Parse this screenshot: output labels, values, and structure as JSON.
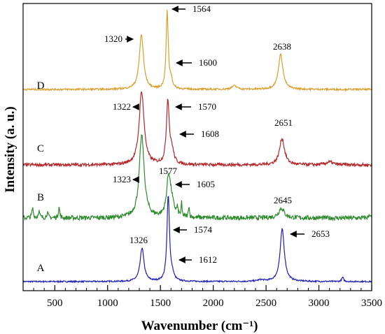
{
  "chart_data": {
    "type": "line",
    "xlabel": "Wavenumber (cm⁻¹)",
    "ylabel": "Intensity (a. u.)",
    "xlim": [
      200,
      3500
    ],
    "xticks": [
      500,
      1000,
      1500,
      2000,
      2500,
      3000,
      3500
    ],
    "yticks_shown": false,
    "grid": false,
    "legend": "none",
    "series": [
      {
        "name": "A",
        "color": "#1f1fb4",
        "peaks": [
          {
            "x": 1326,
            "label": "1326"
          },
          {
            "x": 1574,
            "label": "1574"
          },
          {
            "x": 1612,
            "label": "1612"
          },
          {
            "x": 2653,
            "label": "2653"
          }
        ]
      },
      {
        "name": "B",
        "color": "#2e8b2e",
        "peaks": [
          {
            "x": 1323,
            "label": "1323"
          },
          {
            "x": 1577,
            "label": "1577"
          },
          {
            "x": 1605,
            "label": "1605"
          },
          {
            "x": 2645,
            "label": "2645"
          }
        ]
      },
      {
        "name": "C",
        "color": "#b4282a",
        "peaks": [
          {
            "x": 1322,
            "label": "1322"
          },
          {
            "x": 1570,
            "label": "1570"
          },
          {
            "x": 1608,
            "label": "1608"
          },
          {
            "x": 2651,
            "label": "2651"
          }
        ]
      },
      {
        "name": "D",
        "color": "#d9a030",
        "peaks": [
          {
            "x": 1320,
            "label": "1320"
          },
          {
            "x": 1564,
            "label": "1564"
          },
          {
            "x": 1600,
            "label": "1600"
          },
          {
            "x": 2638,
            "label": "2638"
          }
        ]
      }
    ]
  }
}
